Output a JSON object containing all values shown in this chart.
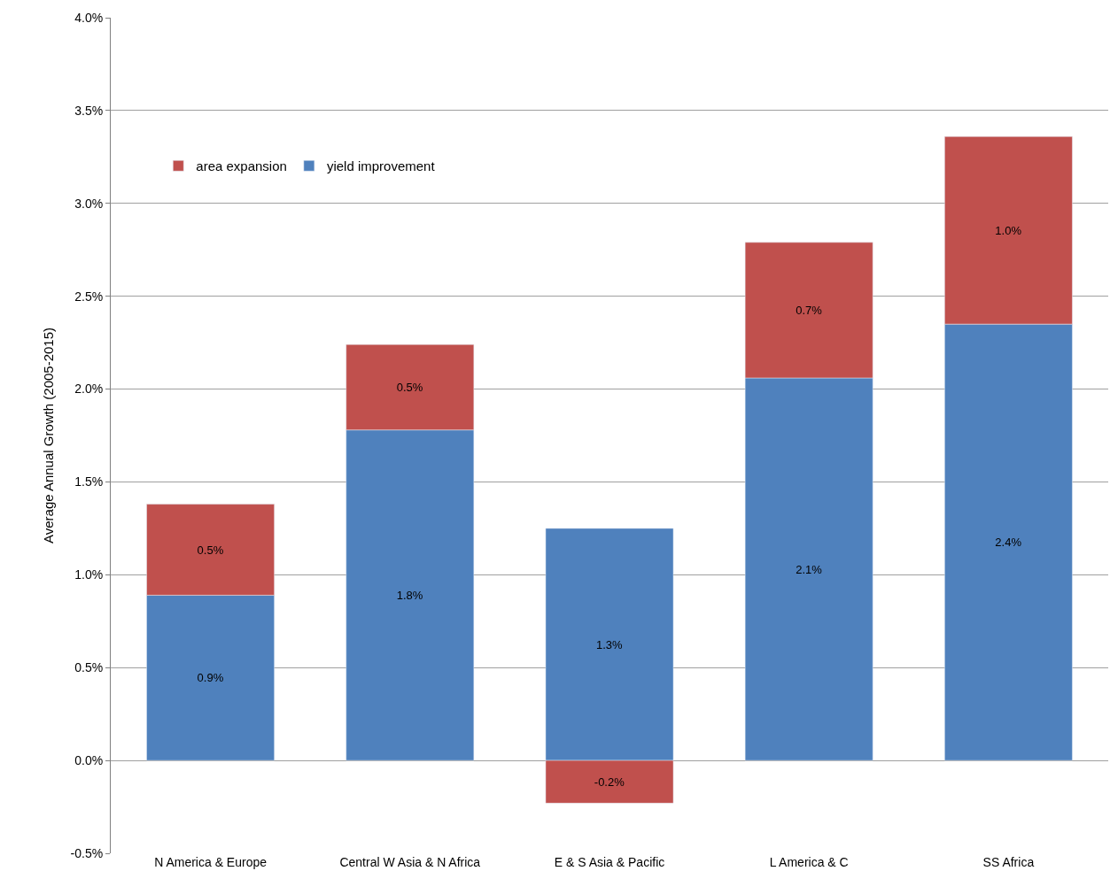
{
  "chart_data": {
    "type": "bar",
    "stacked": true,
    "ylabel": "Average Annual Growth (2005-2015)",
    "categories": [
      "N America & Europe",
      "Central W Asia & N Africa",
      "E & S Asia & Pacific",
      "L America & C",
      "SS Africa"
    ],
    "series": [
      {
        "name": "yield improvement",
        "color": "#4f81bd",
        "values": [
          0.89,
          1.78,
          1.25,
          2.06,
          2.35
        ],
        "value_labels": [
          "0.9%",
          "1.8%",
          "1.3%",
          "2.1%",
          "2.4%"
        ]
      },
      {
        "name": "area expansion",
        "color": "#c0504d",
        "values": [
          0.49,
          0.46,
          -0.23,
          0.73,
          1.01
        ],
        "value_labels": [
          "0.5%",
          "0.5%",
          "-0.2%",
          "0.7%",
          "1.0%"
        ]
      }
    ],
    "ylim": [
      -0.5,
      4.0
    ],
    "yticks": [
      {
        "value": -0.5,
        "label": "-0.5%"
      },
      {
        "value": 0,
        "label": "0.0%"
      },
      {
        "value": 0.5,
        "label": "0.5%"
      },
      {
        "value": 1.0,
        "label": "1.0%"
      },
      {
        "value": 1.5,
        "label": "1.5%"
      },
      {
        "value": 2.0,
        "label": "2.0%"
      },
      {
        "value": 2.5,
        "label": "2.5%"
      },
      {
        "value": 3.0,
        "label": "3.0%"
      },
      {
        "value": 3.5,
        "label": "3.5%"
      },
      {
        "value": 4.0,
        "label": "4.0%"
      }
    ],
    "grid": "y",
    "legend": "top left"
  }
}
